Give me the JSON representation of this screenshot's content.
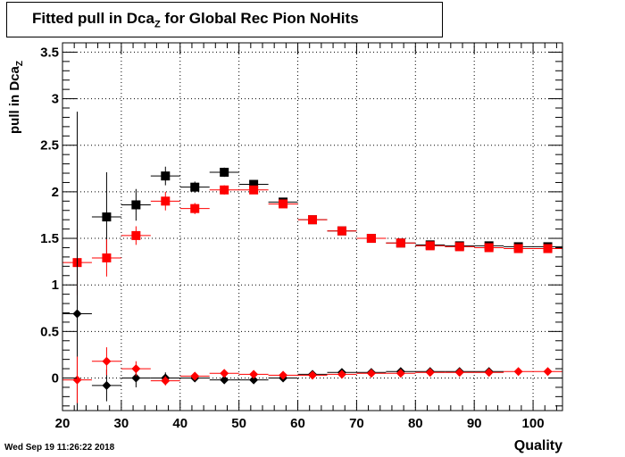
{
  "title": {
    "main": "Fitted pull in Dca",
    "sub": "Z",
    "rest": " for Global Rec Pion NoHits"
  },
  "ylabel": {
    "main": "pull in Dca",
    "sub": "Z"
  },
  "xlabel": "Quality",
  "timestamp": "Wed Sep 19 11:26:22 2018",
  "chart_data": {
    "type": "scatter",
    "xlim": [
      20,
      105
    ],
    "ylim": [
      -0.35,
      3.6
    ],
    "grid": true,
    "xticks": [
      20,
      30,
      40,
      50,
      60,
      70,
      80,
      90,
      100
    ],
    "yticks": [
      0,
      0.5,
      1,
      1.5,
      2,
      2.5,
      3,
      3.5
    ],
    "ytick_labels": [
      "0",
      "0.5",
      "1",
      "1.5",
      "2",
      "2.5",
      "3",
      "3.5"
    ],
    "series": [
      {
        "marker": "square",
        "color": "#000000",
        "points": [
          {
            "x": 27.5,
            "y": 1.73,
            "err": 0.48
          },
          {
            "x": 32.5,
            "y": 1.86,
            "err": 0.17
          },
          {
            "x": 37.5,
            "y": 2.17,
            "err": 0.1
          },
          {
            "x": 42.5,
            "y": 2.05,
            "err": 0.06
          },
          {
            "x": 47.5,
            "y": 2.21,
            "err": 0.05
          },
          {
            "x": 52.5,
            "y": 2.08,
            "err": 0.04
          },
          {
            "x": 57.5,
            "y": 1.89,
            "err": 0.03
          },
          {
            "x": 62.5,
            "y": 1.7,
            "err": 0.02
          },
          {
            "x": 67.5,
            "y": 1.58,
            "err": 0.02
          },
          {
            "x": 72.5,
            "y": 1.5,
            "err": 0.02
          },
          {
            "x": 77.5,
            "y": 1.45,
            "err": 0.02
          },
          {
            "x": 82.5,
            "y": 1.43,
            "err": 0.02
          },
          {
            "x": 87.5,
            "y": 1.42,
            "err": 0.02
          },
          {
            "x": 92.5,
            "y": 1.42,
            "err": 0.02
          },
          {
            "x": 97.5,
            "y": 1.41,
            "err": 0.02
          },
          {
            "x": 102.5,
            "y": 1.41,
            "err": 0.02
          }
        ]
      },
      {
        "marker": "square",
        "color": "#ff0000",
        "points": [
          {
            "x": 22.5,
            "y": 1.24,
            "err": 0.35
          },
          {
            "x": 27.5,
            "y": 1.29,
            "err": 0.2
          },
          {
            "x": 32.5,
            "y": 1.53,
            "err": 0.1
          },
          {
            "x": 37.5,
            "y": 1.9,
            "err": 0.1
          },
          {
            "x": 42.5,
            "y": 1.82,
            "err": 0.06
          },
          {
            "x": 47.5,
            "y": 2.02,
            "err": 0.05
          },
          {
            "x": 52.5,
            "y": 2.02,
            "err": 0.04
          },
          {
            "x": 57.5,
            "y": 1.87,
            "err": 0.03
          },
          {
            "x": 62.5,
            "y": 1.7,
            "err": 0.02
          },
          {
            "x": 67.5,
            "y": 1.58,
            "err": 0.02
          },
          {
            "x": 72.5,
            "y": 1.5,
            "err": 0.02
          },
          {
            "x": 77.5,
            "y": 1.45,
            "err": 0.02
          },
          {
            "x": 82.5,
            "y": 1.42,
            "err": 0.02
          },
          {
            "x": 87.5,
            "y": 1.41,
            "err": 0.02
          },
          {
            "x": 92.5,
            "y": 1.4,
            "err": 0.02
          },
          {
            "x": 97.5,
            "y": 1.39,
            "err": 0.02
          },
          {
            "x": 102.5,
            "y": 1.39,
            "err": 0.02
          }
        ]
      },
      {
        "marker": "diamond",
        "color": "#000000",
        "points": [
          {
            "x": 22.5,
            "y": 0.69,
            "err": 2.17
          },
          {
            "x": 27.5,
            "y": -0.08,
            "err": 0.17
          },
          {
            "x": 32.5,
            "y": 0.0,
            "err": 0.1
          },
          {
            "x": 37.5,
            "y": 0.0,
            "err": 0.06
          },
          {
            "x": 42.5,
            "y": 0.0,
            "err": 0.04
          },
          {
            "x": 47.5,
            "y": -0.02,
            "err": 0.03
          },
          {
            "x": 52.5,
            "y": -0.02,
            "err": 0.03
          },
          {
            "x": 57.5,
            "y": 0.0,
            "err": 0.02
          },
          {
            "x": 62.5,
            "y": 0.04,
            "err": 0.02
          },
          {
            "x": 67.5,
            "y": 0.06,
            "err": 0.02
          },
          {
            "x": 72.5,
            "y": 0.06,
            "err": 0.02
          },
          {
            "x": 77.5,
            "y": 0.07,
            "err": 0.02
          },
          {
            "x": 82.5,
            "y": 0.07,
            "err": 0.02
          },
          {
            "x": 87.5,
            "y": 0.07,
            "err": 0.02
          },
          {
            "x": 92.5,
            "y": 0.07,
            "err": 0.02
          }
        ]
      },
      {
        "marker": "diamond",
        "color": "#ff0000",
        "points": [
          {
            "x": 22.5,
            "y": -0.02,
            "err": 0.25
          },
          {
            "x": 27.5,
            "y": 0.18,
            "err": 0.15
          },
          {
            "x": 32.5,
            "y": 0.1,
            "err": 0.08
          },
          {
            "x": 37.5,
            "y": -0.03,
            "err": 0.05
          },
          {
            "x": 42.5,
            "y": 0.02,
            "err": 0.04
          },
          {
            "x": 47.5,
            "y": 0.05,
            "err": 0.03
          },
          {
            "x": 52.5,
            "y": 0.04,
            "err": 0.03
          },
          {
            "x": 57.5,
            "y": 0.03,
            "err": 0.02
          },
          {
            "x": 62.5,
            "y": 0.03,
            "err": 0.02
          },
          {
            "x": 67.5,
            "y": 0.04,
            "err": 0.02
          },
          {
            "x": 72.5,
            "y": 0.05,
            "err": 0.02
          },
          {
            "x": 77.5,
            "y": 0.05,
            "err": 0.02
          },
          {
            "x": 82.5,
            "y": 0.06,
            "err": 0.02
          },
          {
            "x": 87.5,
            "y": 0.06,
            "err": 0.02
          },
          {
            "x": 92.5,
            "y": 0.06,
            "err": 0.02
          },
          {
            "x": 97.5,
            "y": 0.07,
            "err": 0.02
          },
          {
            "x": 102.5,
            "y": 0.07,
            "err": 0.02
          }
        ]
      }
    ]
  }
}
